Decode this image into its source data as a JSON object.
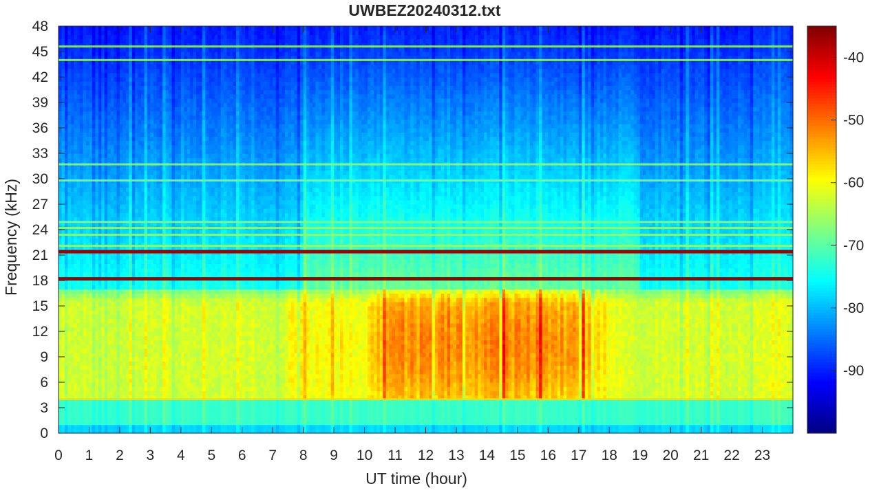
{
  "chart_data": {
    "type": "heatmap",
    "title": "UWBEZ20240312.txt",
    "xlabel": "UT time (hour)",
    "ylabel": "Frequency (kHz)",
    "xlim": [
      0,
      24
    ],
    "ylim": [
      0,
      48
    ],
    "x_ticks": [
      "0",
      "1",
      "2",
      "3",
      "4",
      "5",
      "6",
      "7",
      "8",
      "9",
      "10",
      "11",
      "12",
      "13",
      "14",
      "15",
      "16",
      "17",
      "18",
      "19",
      "20",
      "21",
      "22",
      "23"
    ],
    "y_ticks": [
      "0",
      "3",
      "6",
      "9",
      "12",
      "15",
      "18",
      "21",
      "24",
      "27",
      "30",
      "33",
      "36",
      "39",
      "42",
      "45",
      "48"
    ],
    "colorbar": {
      "colormap": "jet",
      "clim": [
        -100,
        -35
      ],
      "ticks": [
        "-40",
        "-50",
        "-60",
        "-70",
        "-80",
        "-90"
      ]
    },
    "features": {
      "strong_lines_khz": [
        18.2,
        21.4
      ],
      "band_lines_khz": [
        4.0,
        22.1,
        23.4,
        24.2,
        24.9,
        29.8,
        31.7,
        44.0,
        45.6
      ],
      "active_band_khz": [
        4,
        17
      ],
      "most_active_hours": [
        9.5,
        18.5
      ],
      "levels": {
        "sferic_band_peak_db": -52,
        "sferic_band_typical_db": -62,
        "upper_background_db": -85,
        "lower_band_db": -72,
        "strong_line_db": -37
      }
    },
    "colors": {
      "jet_dark_blue": "#00008f",
      "jet_dark_red": "#800000"
    }
  }
}
